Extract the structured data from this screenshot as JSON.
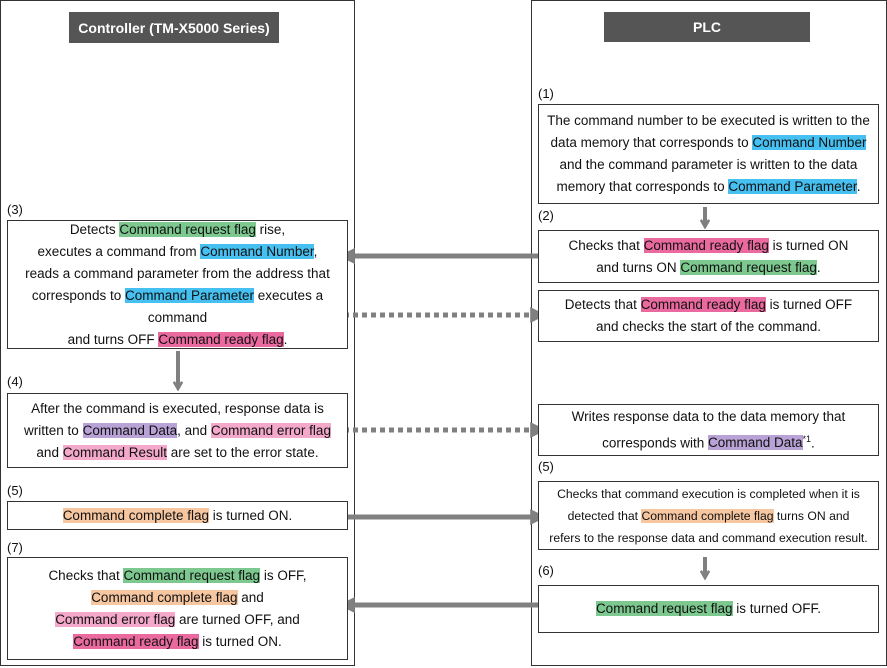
{
  "columns": [
    {
      "title": "Controller (TM-X5000 Series)"
    },
    {
      "title": "PLC"
    }
  ],
  "steps": [
    {
      "label": "(1)",
      "lines": [
        [
          "The command number to be executed is written to the"
        ],
        [
          "data memory that corresponds to ",
          {
            "text": "Command Number",
            "color": "#45c0f0"
          }
        ],
        [
          "and the command parameter is written to the data"
        ],
        [
          "memory that corresponds to ",
          {
            "text": "Command Parameter",
            "color": "#45c0f0"
          },
          "."
        ]
      ]
    },
    {
      "label": "(2)",
      "lines": [
        [
          "Checks that ",
          {
            "text": "Command ready flag",
            "color": "#ea6aa0"
          },
          " is turned ON"
        ],
        [
          "and turns ON ",
          {
            "text": "Command request flag",
            "color": "#7cc88f"
          },
          "."
        ]
      ]
    },
    {
      "lines": [
        [
          "Detects that ",
          {
            "text": "Command ready flag",
            "color": "#ea6aa0"
          },
          " is turned OFF"
        ],
        [
          "and checks the start of the command."
        ]
      ]
    },
    {
      "label": "(3)",
      "lines": [
        [
          "Detects ",
          {
            "text": "Command request flag",
            "color": "#7cc88f"
          },
          " rise,"
        ],
        [
          "executes a command from ",
          {
            "text": "Command Number",
            "color": "#45c0f0"
          },
          ","
        ],
        [
          "reads a command parameter from the address that"
        ],
        [
          "corresponds to ",
          {
            "text": "Command Parameter",
            "color": "#45c0f0"
          },
          " executes a"
        ],
        [
          "command"
        ],
        [
          "and turns OFF ",
          {
            "text": "Command ready flag",
            "color": "#ea6aa0"
          },
          "."
        ]
      ]
    },
    {
      "label": "(4)",
      "lines": [
        [
          "After the command is executed, response data is"
        ],
        [
          "written to ",
          {
            "text": "Command Data",
            "color": "#b9a2d6"
          },
          ", and ",
          {
            "text": "Command error flag",
            "color": "#f4a9cb"
          }
        ],
        [
          "and ",
          {
            "text": "Command Result",
            "color": "#f4a9cb"
          },
          " are set to the error state."
        ]
      ]
    },
    {
      "lines": [
        [
          "Writes response data to the data memory that"
        ],
        [
          "corresponds with ",
          {
            "text": "Command Data",
            "color": "#b9a2d6"
          },
          {
            "text": "*1",
            "sup": true
          },
          "."
        ]
      ]
    },
    {
      "label": "(5)",
      "lines": [
        [
          {
            "text": "Command complete flag",
            "color": "#f6c6a0"
          },
          " is turned ON."
        ]
      ]
    },
    {
      "label": "(5)",
      "lines": [
        [
          "Checks that command execution is completed when it is"
        ],
        [
          "detected that ",
          {
            "text": "Command complete flag",
            "color": "#f6c6a0"
          },
          " turns ON and"
        ],
        [
          "refers to the response data and command execution result."
        ]
      ]
    },
    {
      "label": "(7)",
      "lines": [
        [
          "Checks that ",
          {
            "text": "Command request flag",
            "color": "#7cc88f"
          },
          " is OFF,"
        ],
        [
          {
            "text": "Command complete flag",
            "color": "#f6c6a0"
          },
          " and"
        ],
        [
          {
            "text": "Command error flag",
            "color": "#f4a9cb"
          },
          " are turned OFF, and"
        ],
        [
          {
            "text": "Command ready flag",
            "color": "#ea6aa0"
          },
          " is turned ON."
        ]
      ]
    },
    {
      "label": "(6)",
      "lines": [
        [
          {
            "text": "Command request flag",
            "color": "#7cc88f"
          },
          " is turned OFF."
        ]
      ]
    }
  ]
}
